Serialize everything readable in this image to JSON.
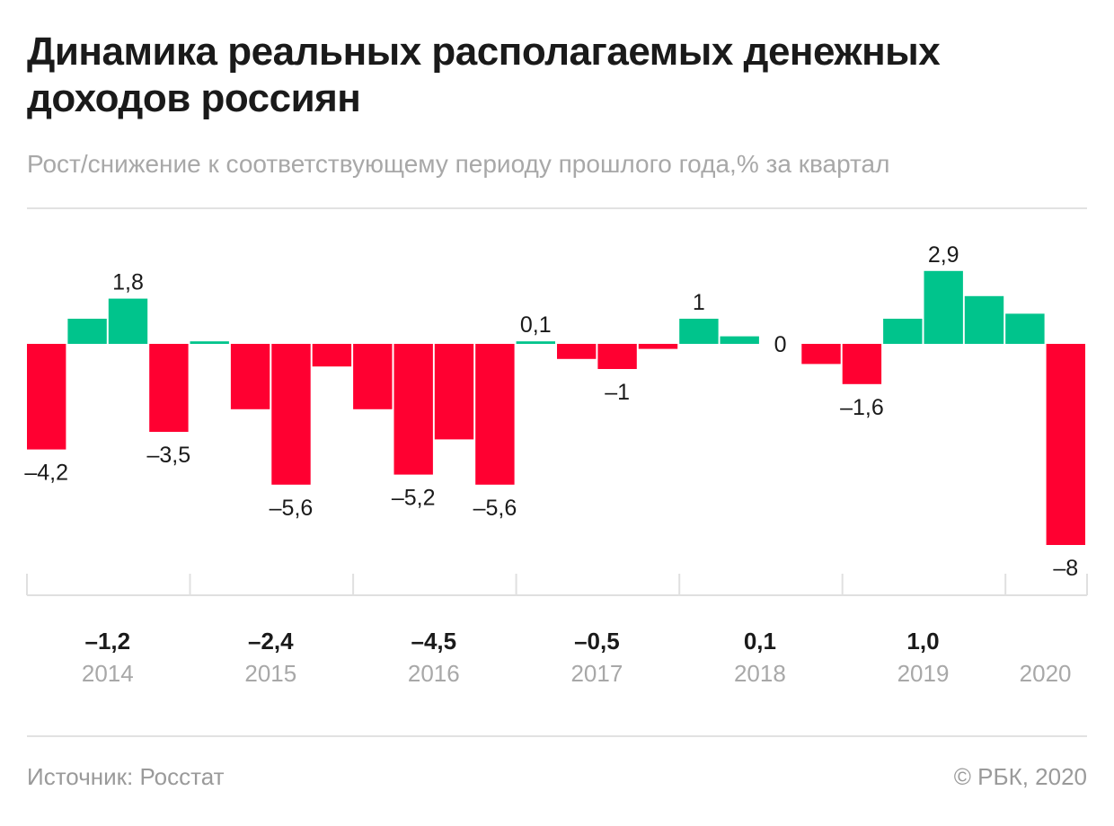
{
  "header": {
    "title": "Динамика реальных располагаемых денежных доходов россиян",
    "subtitle": "Рост/снижение к соответствующему периоду прошлого года,% за квартал"
  },
  "footer": {
    "source": "Источник: Росстат",
    "copyright": "© РБК, 2020"
  },
  "colors": {
    "positive": "#00c48c",
    "negative": "#ff0031",
    "annual_value_text": "#1a1a1a",
    "year_label_text": "#a8a8a8"
  },
  "chart_data": {
    "type": "bar",
    "title": "Динамика реальных располагаемых денежных доходов россиян",
    "subtitle": "Рост/снижение к соответствующему периоду прошлого года,% за квартал",
    "xlabel": "",
    "ylabel": "",
    "grid": false,
    "ylim": [
      -8.2,
      3.3
    ],
    "values": [
      -4.2,
      1.0,
      1.8,
      -3.5,
      0.1,
      -2.6,
      -5.6,
      -0.9,
      -2.6,
      -5.2,
      -3.8,
      -5.6,
      0.1,
      -0.6,
      -1.0,
      -0.2,
      1.0,
      0.3,
      0,
      -0.8,
      -1.6,
      1.0,
      2.9,
      1.9,
      1.2,
      -8
    ],
    "data_labels": [
      {
        "index": 0,
        "text": "–4,2"
      },
      {
        "index": 2,
        "text": "1,8"
      },
      {
        "index": 3,
        "text": "–3,5"
      },
      {
        "index": 6,
        "text": "–5,6"
      },
      {
        "index": 9,
        "text": "–5,2"
      },
      {
        "index": 11,
        "text": "–5,6"
      },
      {
        "index": 12,
        "text": "0,1"
      },
      {
        "index": 14,
        "text": "–1"
      },
      {
        "index": 16,
        "text": "1"
      },
      {
        "index": 18,
        "text": "0"
      },
      {
        "index": 20,
        "text": "–1,6"
      },
      {
        "index": 22,
        "text": "2,9"
      },
      {
        "index": 25,
        "text": "–8"
      }
    ],
    "years": [
      {
        "year": "2014",
        "annual": "–1,2"
      },
      {
        "year": "2015",
        "annual": "–2,4"
      },
      {
        "year": "2016",
        "annual": "–4,5"
      },
      {
        "year": "2017",
        "annual": "–0,5"
      },
      {
        "year": "2018",
        "annual": "0,1"
      },
      {
        "year": "2019",
        "annual": "1,0"
      },
      {
        "year": "2020",
        "annual": ""
      }
    ]
  }
}
